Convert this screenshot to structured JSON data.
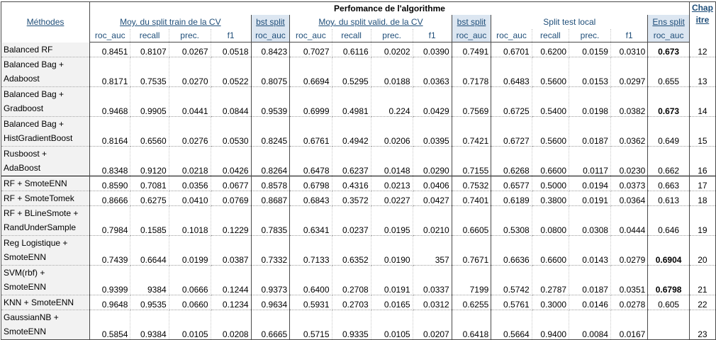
{
  "header": {
    "methods": "Méthodes",
    "title": "Perfomance de l'algorithme",
    "chap_line1": "Chap",
    "chap_line2": "itre",
    "group_train": "Moy. du split train de la CV",
    "group_bst_split_1": "bst split",
    "group_valid": "Moy. du split valid. de la CV",
    "group_bst_split_2": "bst split",
    "group_test": "Split test local",
    "group_ens_split": "Ens split",
    "sub": [
      "roc_auc",
      "recall",
      "prec.",
      "f1",
      "roc_auc",
      "roc_auc",
      "recall",
      "prec.",
      "f1",
      "roc_auc",
      "roc_auc",
      "recall",
      "prec.",
      "f1",
      "roc_auc"
    ]
  },
  "rows": [
    {
      "m1": "Balanced RF",
      "m2": "",
      "v": [
        "0.8451",
        "0.8107",
        "0.0267",
        "0.0518",
        "0.8423",
        "0.7027",
        "0.6116",
        "0.0202",
        "0.0390",
        "0.7491",
        "0.6701",
        "0.6200",
        "0.0159",
        "0.0310",
        "0.673"
      ],
      "ens_bold": true,
      "chap": "12"
    },
    {
      "m1": "Balanced Bag +",
      "m2": "Adaboost",
      "v": [
        "0.8171",
        "0.7535",
        "0.0270",
        "0.0522",
        "0.8075",
        "0.6694",
        "0.5295",
        "0.0188",
        "0.0363",
        "0.7178",
        "0.6483",
        "0.5600",
        "0.0153",
        "0.0297",
        "0.655"
      ],
      "ens_bold": false,
      "chap": "13"
    },
    {
      "m1": "Balanced Bag +",
      "m2": "Gradboost",
      "v": [
        "0.9468",
        "0.9905",
        "0.0441",
        "0.0844",
        "0.9539",
        "0.6999",
        "0.4981",
        "0.224",
        "0.0429",
        "0.7569",
        "0.6725",
        "0.5400",
        "0.0198",
        "0.0382",
        "0.673"
      ],
      "ens_bold": true,
      "chap": "14"
    },
    {
      "m1": "Balanced Bag +",
      "m2": "HistGradientBoost",
      "v": [
        "0.8164",
        "0.6560",
        "0.0276",
        "0.0530",
        "0.8245",
        "0.6761",
        "0.4942",
        "0.0206",
        "0.0395",
        "0.7421",
        "0.6727",
        "0.5600",
        "0.0187",
        "0.0362",
        "0.649"
      ],
      "ens_bold": false,
      "chap": "15"
    },
    {
      "m1": "Rusboost +",
      "m2": "AdaBoost",
      "v": [
        "0.8348",
        "0.9120",
        "0.0218",
        "0.0426",
        "0.8264",
        "0.6478",
        "0.6237",
        "0.0148",
        "0.0290",
        "0.7155",
        "0.6268",
        "0.6600",
        "0.0117",
        "0.0230",
        "0.662"
      ],
      "ens_bold": false,
      "chap": "16"
    },
    {
      "m1": "RF + SmoteENN",
      "m2": "",
      "v": [
        "0.8590",
        "0.7081",
        "0.0356",
        "0.0677",
        "0.8578",
        "0.6798",
        "0.4316",
        "0.0213",
        "0.0406",
        "0.7532",
        "0.6577",
        "0.5000",
        "0.0194",
        "0.0373",
        "0.663"
      ],
      "ens_bold": false,
      "chap": "17"
    },
    {
      "m1": "RF + SmoteTomek",
      "m2": "",
      "v": [
        "0.8666",
        "0.6275",
        "0.0410",
        "0.0769",
        "0.8687",
        "0.6843",
        "0.3572",
        "0.0227",
        "0.0427",
        "0.7401",
        "0.6189",
        "0.3800",
        "0.0191",
        "0.0364",
        "0.613"
      ],
      "ens_bold": false,
      "chap": "18"
    },
    {
      "m1": "RF + BLineSmote +",
      "m2": "RandUnderSample",
      "v": [
        "0.7984",
        "0.1585",
        "0.1018",
        "0.1229",
        "0.7835",
        "0.6341",
        "0.0237",
        "0.0195",
        "0.0210",
        "0.6605",
        "0.5308",
        "0.0800",
        "0.0308",
        "0.0444",
        "0.646"
      ],
      "ens_bold": false,
      "chap": "19"
    },
    {
      "m1": "Reg Logistique +",
      "m2": "SmoteENN",
      "v": [
        "0.7439",
        "0.6644",
        "0.0199",
        "0.0387",
        "0.7332",
        "0.7133",
        "0.6352",
        "0.0190",
        "357",
        "0.7671",
        "0.6636",
        "0.6600",
        "0.0143",
        "0.0279",
        "0.6904"
      ],
      "ens_bold": true,
      "chap": "20"
    },
    {
      "m1": "SVM(rbf) +",
      "m2": "SmoteENN",
      "v": [
        "0.9399",
        "9384",
        "0.0666",
        "0.1244",
        "0.9373",
        "0.6400",
        "0.2708",
        "0.0191",
        "0.0337",
        "7199",
        "0.5742",
        "0.2787",
        "0.0187",
        "0.0351",
        "0.6798"
      ],
      "ens_bold": true,
      "chap": "21"
    },
    {
      "m1": "KNN + SmoteENN",
      "m2": "",
      "v": [
        "0.9648",
        "0.9535",
        "0.0660",
        "0.1234",
        "0.9634",
        "0.5931",
        "0.2703",
        "0.0165",
        "0.0312",
        "0.6255",
        "0.5761",
        "0.3000",
        "0.0146",
        "0.0278",
        "0.605"
      ],
      "ens_bold": false,
      "chap": "22"
    },
    {
      "m1": "GaussianNB +",
      "m2": "SmoteENN",
      "v": [
        "0.5854",
        "0.9384",
        "0.0105",
        "0.0208",
        "0.6665",
        "0.5715",
        "0.9335",
        "0.0105",
        "0.0207",
        "0.6418",
        "0.5664",
        "0.9400",
        "0.0084",
        "0.0167",
        ""
      ],
      "ens_bold": false,
      "chap": "23"
    }
  ],
  "colors": {
    "header_text": "#1f4e79",
    "highlight": "#dce6f1",
    "method_bg": "#f2f2f2"
  }
}
